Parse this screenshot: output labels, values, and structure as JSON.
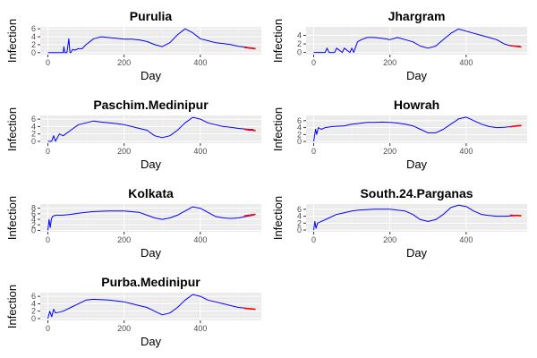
{
  "chart_data": [
    {
      "type": "line",
      "title": "Purulia",
      "xlabel": "Day",
      "ylabel": "Infection",
      "xlim": [
        -20,
        560
      ],
      "ylim": [
        -0.5,
        6.5
      ],
      "xticks": [
        0,
        200,
        400
      ],
      "yticks": [
        0,
        2,
        4,
        6
      ],
      "grid": true,
      "series": [
        {
          "color": "#0000ff",
          "x": [
            0,
            20,
            40,
            42,
            44,
            50,
            55,
            58,
            60,
            65,
            70,
            80,
            90,
            100,
            120,
            140,
            160,
            180,
            200,
            220,
            240,
            260,
            280,
            300,
            320,
            340,
            360,
            370,
            380,
            400,
            420,
            440,
            460,
            480,
            500,
            520,
            530,
            540
          ],
          "y": [
            0,
            0,
            0,
            1.5,
            0,
            0,
            3.5,
            0,
            0,
            0.8,
            0.6,
            1.0,
            1.0,
            2.0,
            3.5,
            4.0,
            3.8,
            3.6,
            3.4,
            3.4,
            3.2,
            2.8,
            2.0,
            1.5,
            2.5,
            4.5,
            6.0,
            5.5,
            5.0,
            3.5,
            3.0,
            2.5,
            2.3,
            2.0,
            1.6,
            1.4,
            1.2,
            1.1
          ]
        },
        {
          "color": "#ff0000",
          "x": [
            515,
            525,
            535,
            545
          ],
          "y": [
            1.3,
            1.2,
            1.1,
            1.0
          ]
        }
      ]
    },
    {
      "type": "line",
      "title": "Jhargram",
      "xlabel": "Day",
      "ylabel": "Infection",
      "xlim": [
        -20,
        560
      ],
      "ylim": [
        -0.5,
        6.0
      ],
      "xticks": [
        0,
        200,
        400
      ],
      "yticks": [
        0,
        2,
        4
      ],
      "grid": true,
      "series": [
        {
          "color": "#0000ff",
          "x": [
            0,
            30,
            35,
            40,
            55,
            60,
            75,
            80,
            95,
            100,
            105,
            115,
            125,
            140,
            160,
            180,
            200,
            220,
            240,
            260,
            280,
            300,
            320,
            340,
            360,
            380,
            400,
            420,
            440,
            460,
            480,
            500,
            520,
            540
          ],
          "y": [
            0,
            0,
            1.0,
            0,
            0,
            1.0,
            0,
            1.0,
            0,
            1.0,
            0,
            2.5,
            3.0,
            3.5,
            3.5,
            3.3,
            3.0,
            3.5,
            3.0,
            2.5,
            1.5,
            1.0,
            1.5,
            3.0,
            4.5,
            5.5,
            5.0,
            4.5,
            4.0,
            3.5,
            3.0,
            2.0,
            1.5,
            1.5
          ]
        },
        {
          "color": "#ff0000",
          "x": [
            515,
            525,
            535,
            545
          ],
          "y": [
            1.6,
            1.5,
            1.4,
            1.3
          ]
        }
      ]
    },
    {
      "type": "line",
      "title": "Paschim.Medinipur",
      "xlabel": "Day",
      "ylabel": "Infection",
      "xlim": [
        -20,
        560
      ],
      "ylim": [
        -0.5,
        7.0
      ],
      "xticks": [
        0,
        200,
        400
      ],
      "yticks": [
        0,
        2,
        4,
        6
      ],
      "grid": true,
      "series": [
        {
          "color": "#0000ff",
          "x": [
            0,
            10,
            15,
            20,
            30,
            40,
            60,
            80,
            100,
            120,
            140,
            160,
            180,
            200,
            220,
            240,
            260,
            280,
            300,
            320,
            340,
            360,
            380,
            400,
            420,
            440,
            460,
            480,
            500,
            520,
            540
          ],
          "y": [
            0,
            0,
            1.5,
            0,
            2.0,
            1.5,
            3.0,
            4.5,
            5.0,
            5.5,
            5.2,
            5.0,
            4.8,
            4.5,
            4.0,
            3.5,
            3.0,
            1.5,
            1.0,
            1.5,
            3.0,
            5.0,
            6.5,
            6.0,
            5.0,
            4.5,
            4.0,
            3.8,
            3.5,
            3.3,
            3.2
          ]
        },
        {
          "color": "#ff0000",
          "x": [
            515,
            525,
            535,
            545
          ],
          "y": [
            3.3,
            3.1,
            3.0,
            2.9
          ]
        }
      ]
    },
    {
      "type": "line",
      "title": "Howrah",
      "xlabel": "Day",
      "ylabel": "Infection",
      "xlim": [
        -20,
        560
      ],
      "ylim": [
        -0.5,
        7.5
      ],
      "xticks": [
        0,
        200,
        400
      ],
      "yticks": [
        0,
        2,
        4,
        6
      ],
      "grid": true,
      "series": [
        {
          "color": "#0000ff",
          "x": [
            0,
            5,
            8,
            12,
            20,
            30,
            50,
            80,
            100,
            120,
            140,
            160,
            180,
            200,
            220,
            240,
            260,
            280,
            300,
            320,
            340,
            360,
            380,
            400,
            420,
            440,
            460,
            480,
            500,
            520,
            540
          ],
          "y": [
            0,
            3.5,
            2.0,
            4.0,
            3.5,
            4.0,
            4.3,
            4.5,
            5.0,
            5.2,
            5.5,
            5.5,
            5.6,
            5.5,
            5.3,
            5.0,
            4.5,
            3.5,
            2.5,
            2.5,
            3.5,
            5.0,
            6.5,
            7.0,
            6.0,
            5.0,
            4.3,
            4.0,
            4.1,
            4.3,
            4.5
          ]
        },
        {
          "color": "#ff0000",
          "x": [
            515,
            525,
            535,
            545
          ],
          "y": [
            4.2,
            4.4,
            4.5,
            4.6
          ]
        }
      ]
    },
    {
      "type": "line",
      "title": "Kolkata",
      "xlabel": "Day",
      "ylabel": "Infection",
      "xlim": [
        -20,
        560
      ],
      "ylim": [
        -0.5,
        9.5
      ],
      "xticks": [
        0,
        200,
        400
      ],
      "yticks": [
        0,
        2,
        4,
        6,
        8
      ],
      "grid": true,
      "series": [
        {
          "color": "#0000ff",
          "x": [
            0,
            3,
            6,
            9,
            12,
            20,
            40,
            60,
            80,
            100,
            120,
            160,
            200,
            240,
            260,
            280,
            300,
            320,
            340,
            360,
            380,
            400,
            420,
            440,
            460,
            480,
            500,
            520,
            540
          ],
          "y": [
            0,
            4.0,
            1.0,
            4.0,
            5.0,
            5.5,
            5.5,
            5.8,
            6.2,
            6.5,
            6.8,
            7.0,
            7.0,
            6.5,
            5.5,
            4.5,
            4.0,
            4.5,
            5.5,
            7.0,
            8.5,
            8.0,
            6.5,
            5.0,
            4.5,
            4.3,
            4.5,
            5.0,
            5.5
          ]
        },
        {
          "color": "#ff0000",
          "x": [
            515,
            525,
            535,
            545
          ],
          "y": [
            5.2,
            5.4,
            5.6,
            5.8
          ]
        }
      ]
    },
    {
      "type": "line",
      "title": "South.24.Parganas",
      "xlabel": "Day",
      "ylabel": "Infection",
      "xlim": [
        -20,
        560
      ],
      "ylim": [
        -0.5,
        7.5
      ],
      "xticks": [
        0,
        200,
        400
      ],
      "yticks": [
        0,
        2,
        4,
        6
      ],
      "grid": true,
      "series": [
        {
          "color": "#0000ff",
          "x": [
            0,
            3,
            6,
            10,
            20,
            40,
            60,
            80,
            100,
            120,
            160,
            200,
            240,
            260,
            280,
            300,
            320,
            340,
            360,
            380,
            400,
            420,
            440,
            460,
            480,
            500,
            520,
            540
          ],
          "y": [
            0,
            2.5,
            0.5,
            2.0,
            2.5,
            3.5,
            4.5,
            5.0,
            5.5,
            5.8,
            6.0,
            6.0,
            5.5,
            4.5,
            3.0,
            2.5,
            3.0,
            4.5,
            6.5,
            7.2,
            6.8,
            5.5,
            4.5,
            4.2,
            4.0,
            4.0,
            4.1,
            4.2
          ]
        },
        {
          "color": "#ff0000",
          "x": [
            515,
            525,
            535,
            545
          ],
          "y": [
            4.3,
            4.2,
            4.2,
            4.1
          ]
        }
      ]
    },
    {
      "type": "line",
      "title": "Purba.Medinipur",
      "xlabel": "Day",
      "ylabel": "Infection",
      "xlim": [
        -20,
        560
      ],
      "ylim": [
        -0.5,
        7.0
      ],
      "xticks": [
        0,
        200,
        400
      ],
      "yticks": [
        0,
        2,
        4,
        6
      ],
      "grid": true,
      "series": [
        {
          "color": "#0000ff",
          "x": [
            0,
            5,
            10,
            15,
            20,
            40,
            60,
            80,
            100,
            120,
            160,
            200,
            220,
            240,
            260,
            280,
            300,
            320,
            340,
            360,
            380,
            400,
            420,
            440,
            460,
            480,
            500,
            520,
            540
          ],
          "y": [
            0,
            2.0,
            0.5,
            2.5,
            1.5,
            2.0,
            3.0,
            4.0,
            5.0,
            5.2,
            5.0,
            4.5,
            4.0,
            3.5,
            3.0,
            2.0,
            1.0,
            1.5,
            3.0,
            5.0,
            6.5,
            6.0,
            5.0,
            4.5,
            4.0,
            3.5,
            3.0,
            2.8,
            2.5
          ]
        },
        {
          "color": "#ff0000",
          "x": [
            515,
            525,
            535,
            545
          ],
          "y": [
            2.8,
            2.7,
            2.6,
            2.5
          ]
        }
      ]
    }
  ]
}
